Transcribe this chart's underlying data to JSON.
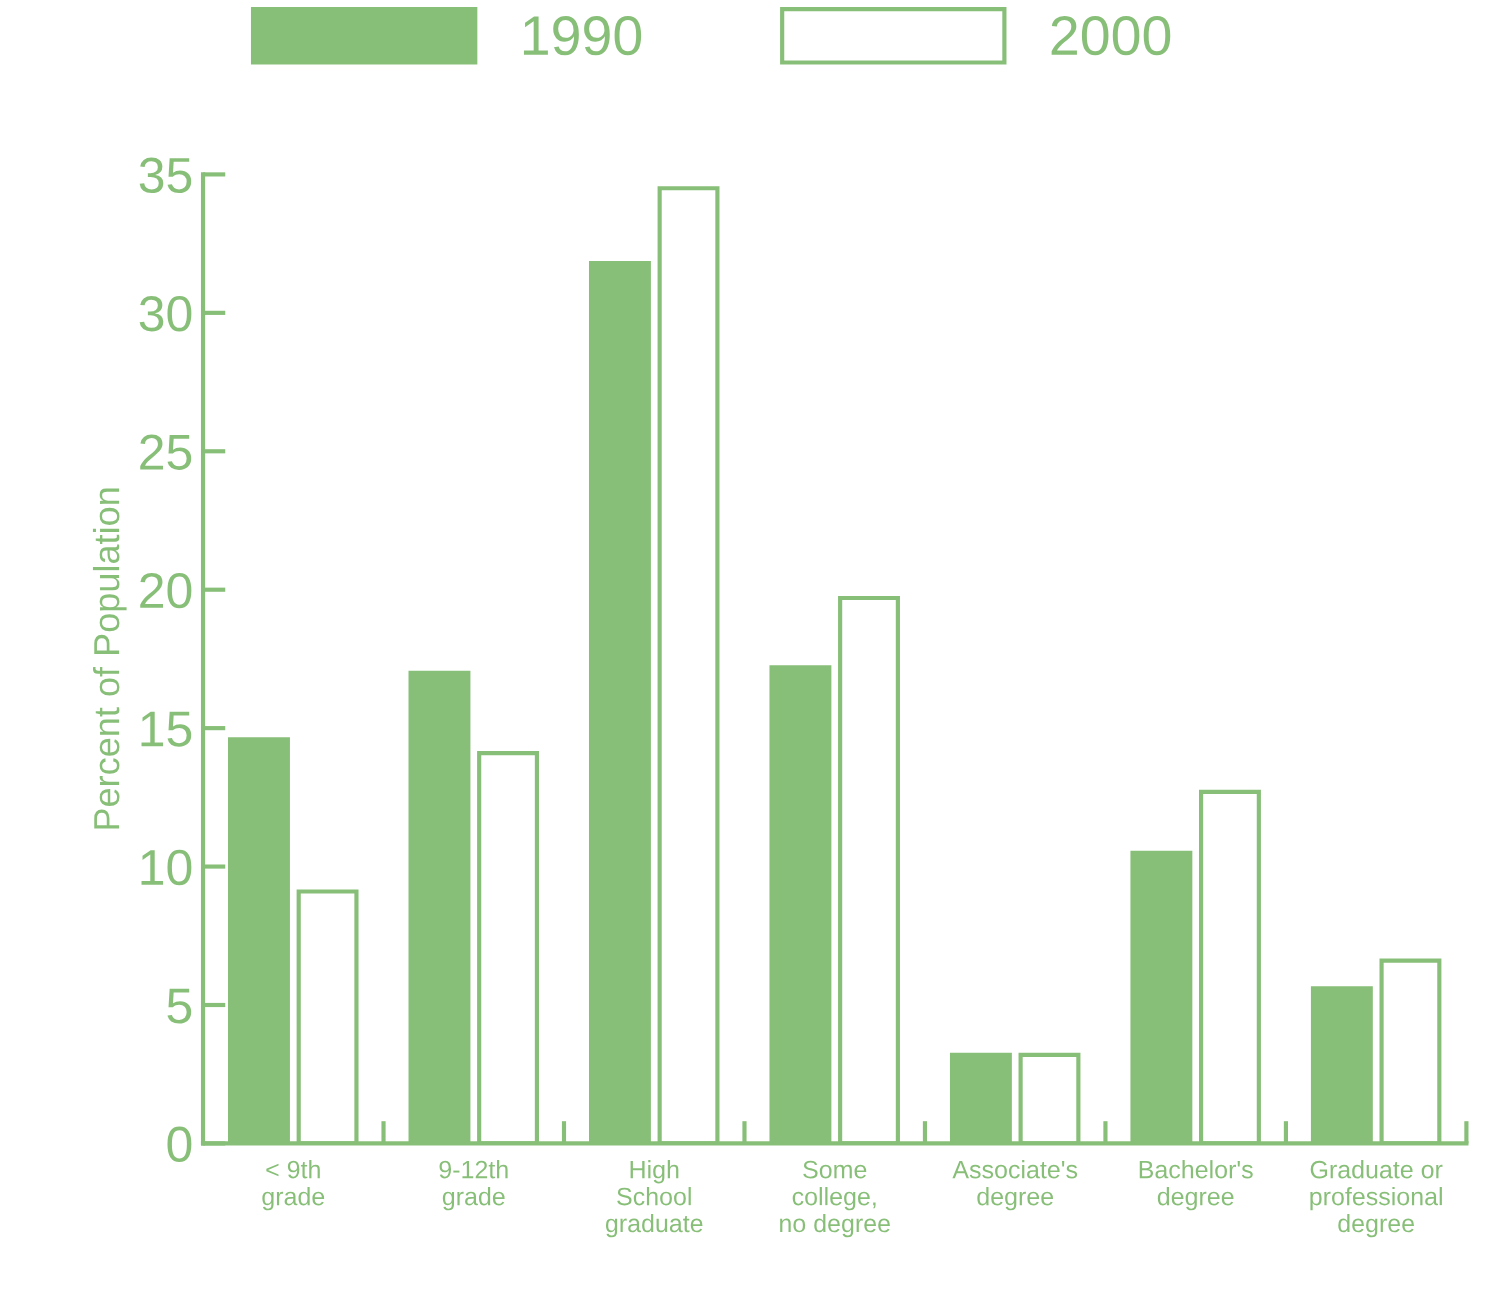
{
  "chart_data": {
    "type": "bar",
    "ylabel": "Percent of Population",
    "categories": [
      "< 9th\ngrade",
      "9-12th\ngrade",
      "High\nSchool\ngraduate",
      "Some\ncollege,\nno degree",
      "Associate's\ndegree",
      "Bachelor's\ndegree",
      "Graduate or\nprofessional\ndegree"
    ],
    "series": [
      {
        "name": "1990",
        "color": "#88bf78",
        "values": [
          14.6,
          17.0,
          31.8,
          17.2,
          3.2,
          10.5,
          5.6
        ]
      },
      {
        "name": "2000",
        "color": "#ffffff",
        "values": [
          9.1,
          14.1,
          34.5,
          19.7,
          3.2,
          12.7,
          6.6
        ]
      }
    ],
    "ylim": [
      0,
      35
    ],
    "yticks": [
      0,
      5,
      10,
      15,
      20,
      25,
      30,
      35
    ],
    "grid": false,
    "legend": "top"
  }
}
